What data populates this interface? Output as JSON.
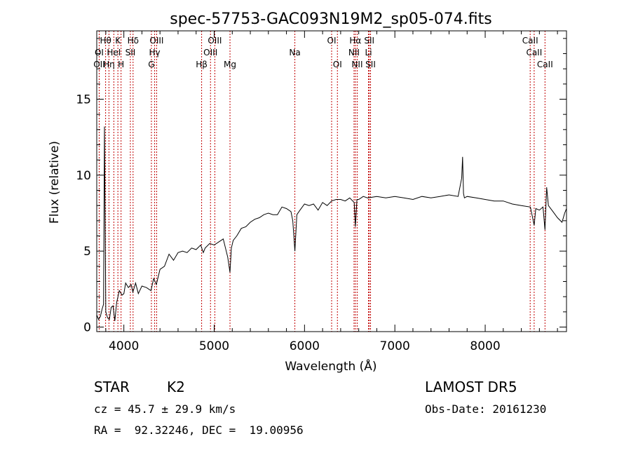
{
  "header": {
    "title": "spec-57753-GAC093N19M2_sp05-074.fits"
  },
  "footer": {
    "object_class": "STAR",
    "subclass": "K2",
    "survey": "LAMOST DR5",
    "cz": "cz = 45.7 ± 29.9 km/s",
    "obs_date": "Obs-Date: 20161230",
    "radec": "RA =  92.32246, DEC =  19.00956"
  },
  "chart_data": {
    "type": "line",
    "title": "spec-57753-GAC093N19M2_sp05-074.fits",
    "xlabel": "Wavelength (Å)",
    "ylabel": "Flux (relative)",
    "xlim": [
      3700,
      8900
    ],
    "ylim": [
      -0.3,
      19.5
    ],
    "x_ticks": [
      4000,
      5000,
      6000,
      7000,
      8000
    ],
    "y_ticks": [
      0,
      5,
      10,
      15
    ],
    "grid": false,
    "series": [
      {
        "x": [
          3700,
          3720,
          3740,
          3760,
          3775,
          3785,
          3800,
          3820,
          3840,
          3860,
          3880,
          3900,
          3920,
          3950,
          3980,
          4000,
          4020,
          4050,
          4080,
          4100,
          4130,
          4160,
          4200,
          4250,
          4300,
          4330,
          4360,
          4400,
          4450,
          4500,
          4550,
          4600,
          4650,
          4700,
          4750,
          4800,
          4850,
          4880,
          4900,
          4950,
          5000,
          5050,
          5100,
          5150,
          5175,
          5190,
          5210,
          5250,
          5300,
          5350,
          5400,
          5450,
          5500,
          5550,
          5600,
          5650,
          5700,
          5750,
          5800,
          5850,
          5870,
          5893,
          5915,
          5950,
          6000,
          6050,
          6100,
          6150,
          6200,
          6250,
          6300,
          6350,
          6400,
          6450,
          6500,
          6550,
          6563,
          6580,
          6600,
          6650,
          6700,
          6800,
          6900,
          7000,
          7100,
          7200,
          7300,
          7400,
          7500,
          7600,
          7700,
          7740,
          7750,
          7760,
          7770,
          7800,
          7900,
          8000,
          8100,
          8200,
          8300,
          8400,
          8500,
          8542,
          8560,
          8600,
          8640,
          8662,
          8680,
          8700,
          8750,
          8800,
          8850,
          8880,
          8900
        ],
        "y": [
          0.8,
          0.5,
          0.7,
          1.2,
          1.5,
          13.2,
          1.0,
          0.6,
          0.5,
          1.3,
          1.4,
          0.4,
          1.6,
          2.4,
          2.1,
          2.2,
          2.9,
          2.6,
          2.8,
          2.3,
          2.9,
          2.2,
          2.7,
          2.6,
          2.4,
          3.2,
          2.8,
          3.8,
          4.0,
          4.8,
          4.4,
          4.9,
          5.0,
          4.9,
          5.2,
          5.1,
          5.4,
          4.9,
          5.2,
          5.5,
          5.4,
          5.6,
          5.8,
          4.6,
          3.6,
          5.2,
          5.7,
          6.0,
          6.5,
          6.6,
          6.9,
          7.1,
          7.2,
          7.4,
          7.5,
          7.4,
          7.4,
          7.9,
          7.8,
          7.6,
          7.0,
          5.0,
          7.4,
          7.7,
          8.1,
          8.0,
          8.1,
          7.7,
          8.2,
          8.0,
          8.3,
          8.4,
          8.4,
          8.3,
          8.5,
          8.2,
          6.6,
          8.4,
          8.4,
          8.6,
          8.5,
          8.6,
          8.5,
          8.6,
          8.5,
          8.4,
          8.6,
          8.5,
          8.6,
          8.7,
          8.6,
          9.8,
          11.2,
          8.8,
          8.5,
          8.6,
          8.5,
          8.4,
          8.3,
          8.3,
          8.1,
          8.0,
          7.9,
          6.7,
          7.8,
          7.7,
          7.9,
          6.4,
          9.2,
          8.0,
          7.6,
          7.2,
          6.9,
          7.5,
          7.8
        ]
      }
    ],
    "spectral_lines": [
      {
        "label": "Hθ",
        "x": 3798,
        "row": 1
      },
      {
        "label": "OII",
        "x": 3727,
        "row": 3
      },
      {
        "label": "OI",
        "x": 3727,
        "row": 2
      },
      {
        "label": "Hη",
        "x": 3835,
        "row": 3
      },
      {
        "label": "HeI",
        "x": 3889,
        "row": 2
      },
      {
        "label": "K",
        "x": 3934,
        "row": 1
      },
      {
        "label": "H",
        "x": 3969,
        "row": 3
      },
      {
        "label": "Hδ",
        "x": 4102,
        "row": 1
      },
      {
        "label": "SII",
        "x": 4072,
        "row": 2
      },
      {
        "label": "OIII",
        "x": 4363,
        "row": 1
      },
      {
        "label": "Hγ",
        "x": 4341,
        "row": 2
      },
      {
        "label": "G",
        "x": 4305,
        "row": 3
      },
      {
        "label": "Hβ",
        "x": 4861,
        "row": 3
      },
      {
        "label": "OIII",
        "x": 5007,
        "row": 1
      },
      {
        "label": "OIII",
        "x": 4959,
        "row": 2
      },
      {
        "label": "Mg",
        "x": 5175,
        "row": 3
      },
      {
        "label": "Na",
        "x": 5893,
        "row": 2
      },
      {
        "label": "OI",
        "x": 6300,
        "row": 1
      },
      {
        "label": "OI",
        "x": 6364,
        "row": 3
      },
      {
        "label": "Hα",
        "x": 6563,
        "row": 1
      },
      {
        "label": "NII",
        "x": 6548,
        "row": 2
      },
      {
        "label": "NII",
        "x": 6583,
        "row": 3
      },
      {
        "label": "SII",
        "x": 6717,
        "row": 1
      },
      {
        "label": "Li",
        "x": 6708,
        "row": 2
      },
      {
        "label": "SII",
        "x": 6731,
        "row": 3
      },
      {
        "label": "CaII",
        "x": 8498,
        "row": 1
      },
      {
        "label": "CaII",
        "x": 8542,
        "row": 2
      },
      {
        "label": "CaII",
        "x": 8662,
        "row": 3
      }
    ],
    "colors": {
      "spectrum": "#000000",
      "line_markers": "#c00000",
      "axes": "#000000"
    }
  }
}
